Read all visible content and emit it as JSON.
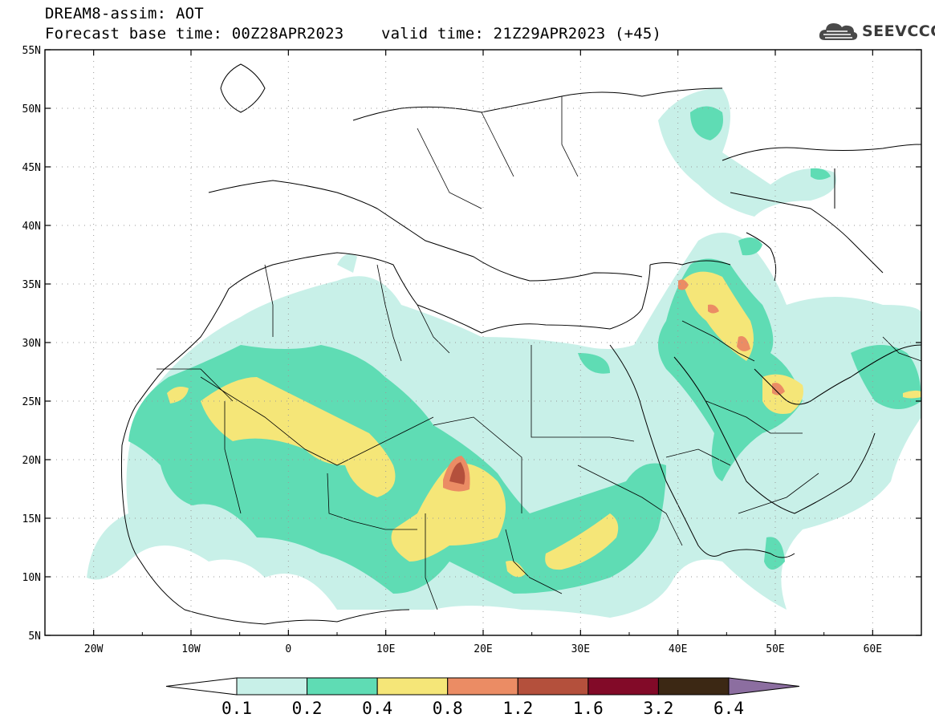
{
  "header": {
    "title": "DREAM8-assim: AOT",
    "base_time_label": "Forecast base time: 00Z28APR2023",
    "valid_time_label": "valid time: 21Z29APR2023 (+45)"
  },
  "logo": {
    "text": "SEEVCCC",
    "icon": "cloud-icon"
  },
  "map": {
    "lon_labels": [
      "20W",
      "10W",
      "0",
      "10E",
      "20E",
      "30E",
      "40E",
      "50E",
      "60E"
    ],
    "lat_labels": [
      "55N",
      "50N",
      "45N",
      "40N",
      "35N",
      "30N",
      "25N",
      "20N",
      "15N",
      "10N",
      "5N"
    ],
    "lon_range": [
      -25,
      65
    ],
    "lat_range": [
      5,
      55
    ]
  },
  "colorbar": {
    "labels": [
      "0.1",
      "0.2",
      "0.4",
      "0.8",
      "1.2",
      "1.6",
      "3.2",
      "6.4"
    ],
    "colors": [
      "#ffffff",
      "#c8f0e8",
      "#5fdcb4",
      "#f5e678",
      "#eb8c64",
      "#b4503c",
      "#820a28",
      "#3c2814",
      "#8c6ea0"
    ]
  }
}
